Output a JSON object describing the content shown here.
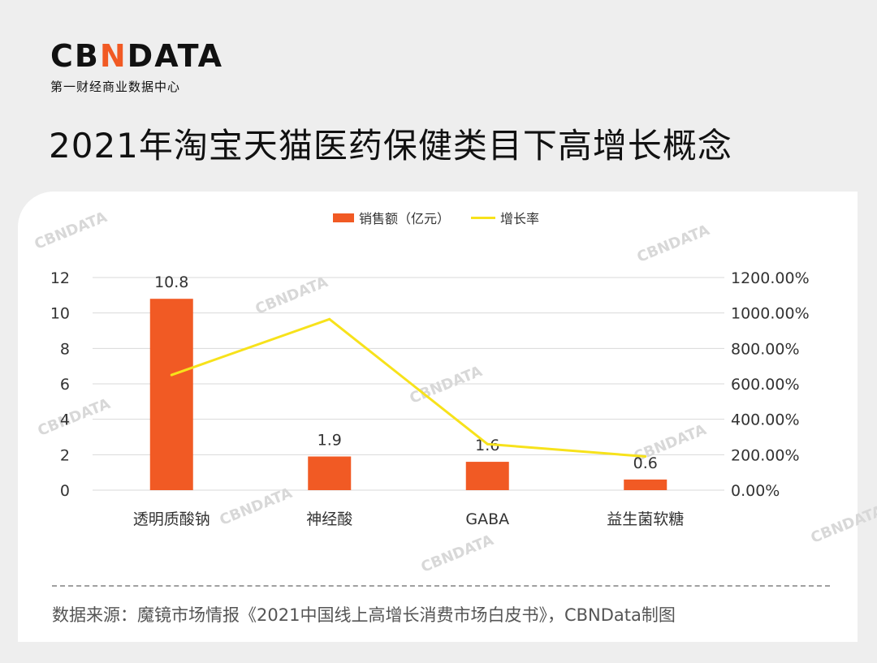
{
  "logo": {
    "main_left": "CB",
    "main_accent": "N",
    "main_right": "DATA",
    "subtitle": "第一财经商业数据中心"
  },
  "title": "2021年淘宝天猫医药保健类目下高增长概念",
  "legend": {
    "bar_label": "销售额（亿元）",
    "line_label": "增长率"
  },
  "colors": {
    "bar": "#f15a24",
    "line": "#f7e21b",
    "grid": "#d9d9d9"
  },
  "chart_data": {
    "type": "bar",
    "categories": [
      "透明质酸钠",
      "神经酸",
      "GABA",
      "益生菌软糖"
    ],
    "series": [
      {
        "name": "销售额（亿元）",
        "type": "bar",
        "axis": "left",
        "values": [
          10.8,
          1.9,
          1.6,
          0.6
        ],
        "labels": [
          "10.8",
          "1.9",
          "1.6",
          "0.6"
        ]
      },
      {
        "name": "增长率",
        "type": "line",
        "axis": "right",
        "values": [
          650,
          965,
          260,
          190
        ]
      }
    ],
    "y_left": {
      "min": 0,
      "max": 12,
      "ticks": [
        "0",
        "2",
        "4",
        "6",
        "8",
        "10",
        "12"
      ]
    },
    "y_right": {
      "min": 0,
      "max": 1200,
      "ticks": [
        "0.00%",
        "200.00%",
        "400.00%",
        "600.00%",
        "800.00%",
        "1000.00%",
        "1200.00%"
      ]
    },
    "grid": true,
    "legend_position": "top-center"
  },
  "source": "数据来源：魔镜市场情报《2021中国线上高增长消费市场白皮书》，CBNData制图",
  "watermark": "CBNDATA"
}
